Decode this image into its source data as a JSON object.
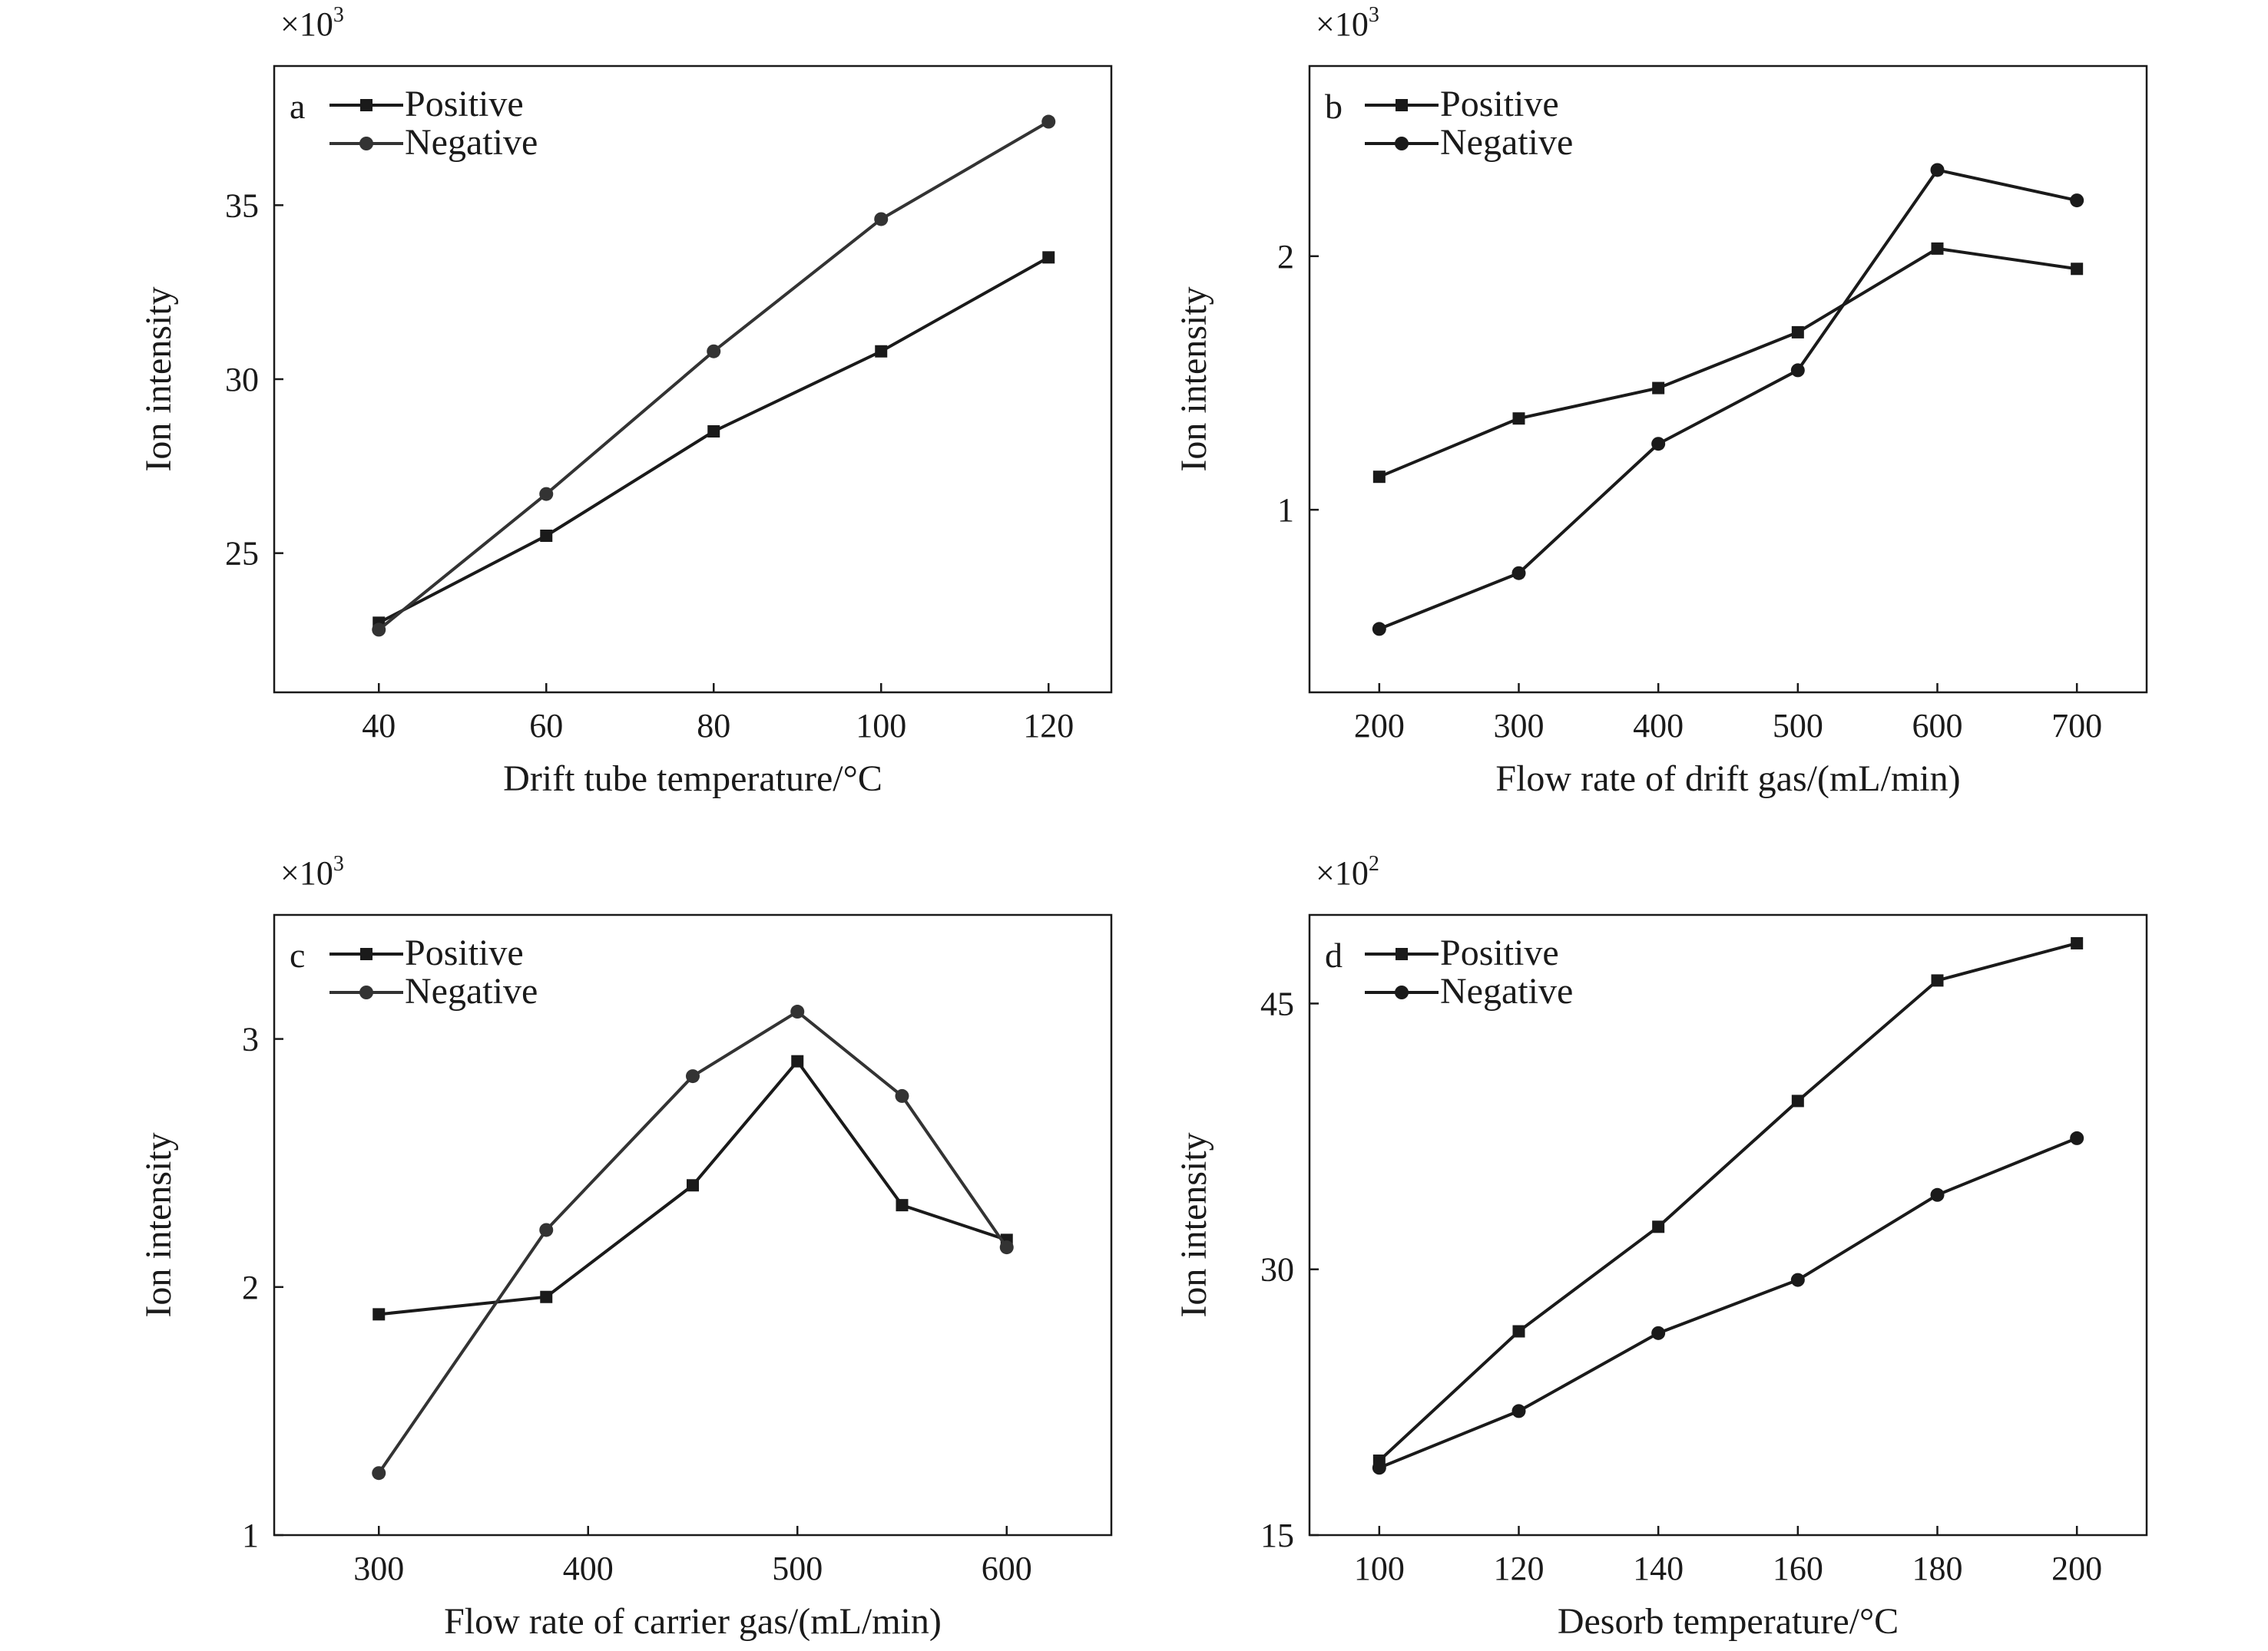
{
  "chart_data": [
    {
      "panel": "a",
      "type": "line",
      "multiplier": "×10",
      "multiplier_exp": "3",
      "xlabel": "Drift tube temperature/°C",
      "ylabel": "Ion intensity",
      "xlim": [
        27.5,
        127.5
      ],
      "ylim": [
        21.0,
        39.0
      ],
      "xticks": [
        40,
        60,
        80,
        100,
        120
      ],
      "yticks": [
        25,
        30,
        35
      ],
      "legend": {
        "position": "top-left",
        "entries": [
          "Positive",
          "Negative"
        ]
      },
      "series": [
        {
          "name": "Positive",
          "marker": "square",
          "color": "#1a1a1a",
          "x": [
            40,
            60,
            80,
            100,
            120
          ],
          "y": [
            23.0,
            25.5,
            28.5,
            30.8,
            33.5
          ]
        },
        {
          "name": "Negative",
          "marker": "circle",
          "color": "#333333",
          "x": [
            40,
            60,
            80,
            100,
            120
          ],
          "y": [
            22.8,
            26.7,
            30.8,
            34.6,
            37.4
          ]
        }
      ]
    },
    {
      "panel": "b",
      "type": "line",
      "multiplier": "×10",
      "multiplier_exp": "3",
      "xlabel": "Flow rate of drift gas/(mL/min)",
      "ylabel": "Ion intensity",
      "xlim": [
        150,
        750
      ],
      "ylim": [
        0.28,
        2.75
      ],
      "xticks": [
        200,
        300,
        400,
        500,
        600,
        700
      ],
      "yticks": [
        1,
        2
      ],
      "legend": {
        "position": "top-left",
        "entries": [
          "Positive",
          "Negative"
        ]
      },
      "series": [
        {
          "name": "Positive",
          "marker": "square",
          "color": "#1a1a1a",
          "x": [
            200,
            300,
            400,
            500,
            600,
            700
          ],
          "y": [
            1.13,
            1.36,
            1.48,
            1.7,
            2.03,
            1.95
          ]
        },
        {
          "name": "Negative",
          "marker": "circle",
          "color": "#1a1a1a",
          "x": [
            200,
            300,
            400,
            500,
            600,
            700
          ],
          "y": [
            0.53,
            0.75,
            1.26,
            1.55,
            2.34,
            2.22
          ]
        }
      ]
    },
    {
      "panel": "c",
      "type": "line",
      "multiplier": "×10",
      "multiplier_exp": "3",
      "xlabel": "Flow rate of carrier gas/(mL/min)",
      "ylabel": "Ion intensity",
      "xlim": [
        250,
        650
      ],
      "ylim": [
        1.0,
        3.5
      ],
      "xticks": [
        300,
        400,
        500,
        600
      ],
      "yticks": [
        1,
        2,
        3
      ],
      "legend": {
        "position": "top-left",
        "entries": [
          "Positive",
          "Negative"
        ]
      },
      "series": [
        {
          "name": "Positive",
          "marker": "square",
          "color": "#1a1a1a",
          "x": [
            300,
            380,
            450,
            500,
            550,
            600
          ],
          "y": [
            1.89,
            1.96,
            2.41,
            2.91,
            2.33,
            2.19
          ]
        },
        {
          "name": "Negative",
          "marker": "circle",
          "color": "#333333",
          "x": [
            300,
            380,
            450,
            500,
            550,
            600
          ],
          "y": [
            1.25,
            2.23,
            2.85,
            3.11,
            2.77,
            2.16
          ]
        }
      ]
    },
    {
      "panel": "d",
      "type": "line",
      "multiplier": "×10",
      "multiplier_exp": "2",
      "xlabel": "Desorb temperature/°C",
      "ylabel": "Ion intensity",
      "xlim": [
        90,
        210
      ],
      "ylim": [
        15,
        50
      ],
      "xticks": [
        100,
        120,
        140,
        160,
        180,
        200
      ],
      "yticks": [
        15,
        30,
        45
      ],
      "legend": {
        "position": "top-left",
        "entries": [
          "Positive",
          "Negative"
        ]
      },
      "series": [
        {
          "name": "Positive",
          "marker": "square",
          "color": "#1a1a1a",
          "x": [
            100,
            120,
            140,
            160,
            180,
            200
          ],
          "y": [
            19.2,
            26.5,
            32.4,
            39.5,
            46.3,
            48.4
          ]
        },
        {
          "name": "Negative",
          "marker": "circle",
          "color": "#1a1a1a",
          "x": [
            100,
            120,
            140,
            160,
            180,
            200
          ],
          "y": [
            18.8,
            22.0,
            26.4,
            29.4,
            34.2,
            37.4
          ]
        }
      ]
    }
  ]
}
